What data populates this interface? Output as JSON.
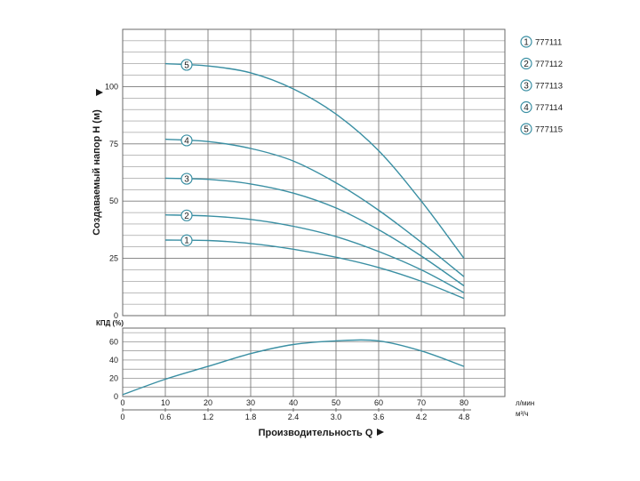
{
  "chart_data": {
    "type": "line",
    "colors": {
      "curve": "#3a8fa3",
      "grid": "#7a7a7a",
      "frame": "#6a6a6a"
    },
    "head_chart": {
      "ylabel": "Создаваемый напор H (м)",
      "ylim": [
        0,
        125
      ],
      "y_ticks": [
        0,
        25,
        50,
        75,
        100
      ],
      "x_units": "л/мин",
      "xlim": [
        0,
        90
      ],
      "series": [
        {
          "name": "777111",
          "marker": "1",
          "points": [
            [
              10,
              33
            ],
            [
              20,
              32.8
            ],
            [
              30,
              31.5
            ],
            [
              40,
              29
            ],
            [
              50,
              25.5
            ],
            [
              60,
              21
            ],
            [
              70,
              15
            ],
            [
              80,
              7.5
            ]
          ]
        },
        {
          "name": "777112",
          "marker": "2",
          "points": [
            [
              10,
              44
            ],
            [
              20,
              43.5
            ],
            [
              30,
              42
            ],
            [
              40,
              39
            ],
            [
              50,
              34.5
            ],
            [
              60,
              28
            ],
            [
              70,
              20
            ],
            [
              80,
              10
            ]
          ]
        },
        {
          "name": "777113",
          "marker": "3",
          "points": [
            [
              10,
              60
            ],
            [
              20,
              59.5
            ],
            [
              30,
              57.5
            ],
            [
              40,
              53.5
            ],
            [
              50,
              47
            ],
            [
              60,
              37.5
            ],
            [
              70,
              26
            ],
            [
              80,
              13
            ]
          ]
        },
        {
          "name": "777114",
          "marker": "4",
          "points": [
            [
              10,
              77
            ],
            [
              20,
              76
            ],
            [
              30,
              73
            ],
            [
              40,
              67.5
            ],
            [
              50,
              58
            ],
            [
              60,
              46
            ],
            [
              70,
              32
            ],
            [
              80,
              17
            ]
          ]
        },
        {
          "name": "777115",
          "marker": "5",
          "points": [
            [
              10,
              110
            ],
            [
              20,
              109
            ],
            [
              30,
              106
            ],
            [
              40,
              99
            ],
            [
              50,
              88
            ],
            [
              60,
              72
            ],
            [
              70,
              50
            ],
            [
              80,
              25
            ]
          ]
        }
      ]
    },
    "efficiency_chart": {
      "ylabel": "КПД (%)",
      "ylim": [
        0,
        75
      ],
      "y_ticks": [
        0,
        20,
        40,
        60
      ],
      "points": [
        [
          0,
          2
        ],
        [
          10,
          19
        ],
        [
          20,
          33
        ],
        [
          30,
          47
        ],
        [
          40,
          57
        ],
        [
          50,
          61
        ],
        [
          60,
          61
        ],
        [
          70,
          50
        ],
        [
          80,
          33
        ]
      ]
    },
    "x_axis": {
      "primary_units": "л/мин",
      "primary_ticks": [
        "0",
        "10",
        "20",
        "30",
        "40",
        "50",
        "60",
        "70",
        "80"
      ],
      "primary_values": [
        0,
        10,
        20,
        30,
        40,
        50,
        60,
        70,
        80
      ],
      "secondary_units": "м³/ч",
      "secondary_ticks": [
        "0",
        "0.6",
        "1.2",
        "1.8",
        "2.4",
        "3.0",
        "3.6",
        "4.2",
        "4.8"
      ],
      "secondary_values": [
        0,
        10,
        20,
        30,
        40,
        50,
        60,
        70,
        80
      ],
      "xlabel": "Производительность Q"
    },
    "legend": {
      "placement": "right",
      "entries": [
        {
          "marker": "1",
          "label": "777111"
        },
        {
          "marker": "2",
          "label": "777112"
        },
        {
          "marker": "3",
          "label": "777113"
        },
        {
          "marker": "4",
          "label": "777114"
        },
        {
          "marker": "5",
          "label": "777115"
        }
      ]
    },
    "grid": true
  }
}
